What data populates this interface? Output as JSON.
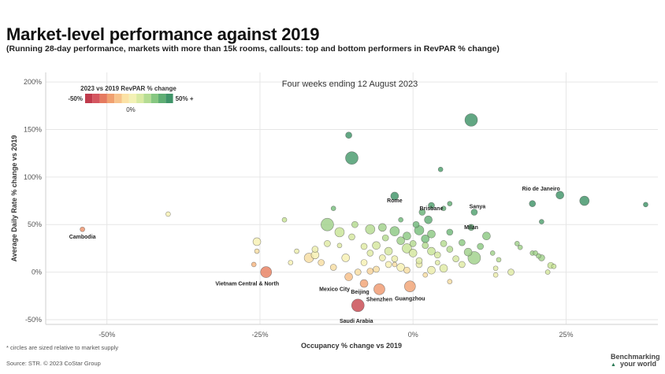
{
  "title": "Market-level performance against 2019",
  "subtitle": "(Running 28-day performance, markets with more than 15k rooms, callouts: top and bottom performers in RevPAR % change)",
  "footnote": "* circles are sized relative to market supply",
  "source": "Source: STR. © 2023 CoStar Group",
  "brand": {
    "line1": "Benchmarking",
    "line2": "your world"
  },
  "chart_data": {
    "type": "scatter",
    "annotation": "Four weeks ending 12 August 2023",
    "xlabel": "Occupancy % change vs 2019",
    "ylabel": "Average Daily Rate % change vs 2019",
    "xlim": [
      -60,
      40
    ],
    "ylim": [
      -55,
      210
    ],
    "x_ticks": [
      -50,
      -25,
      0,
      25
    ],
    "x_tick_labels": [
      "-50%",
      "-25%",
      "0%",
      "25%"
    ],
    "y_ticks": [
      -50,
      0,
      50,
      100,
      150,
      200
    ],
    "y_tick_labels": [
      "-50%",
      "0%",
      "50%",
      "100%",
      "150%",
      "200%"
    ],
    "grid": true,
    "legend": {
      "title": "2023 vs 2019 RevPAR % change",
      "min_label": "-50%",
      "mid_label": "0%",
      "max_label": "50% +",
      "colors": [
        "#c03b4c",
        "#d55660",
        "#e57a5f",
        "#f0a070",
        "#f7c38c",
        "#fbe2a6",
        "#f3f1b5",
        "#d9eaa3",
        "#b4dc93",
        "#86c781",
        "#5fae74",
        "#3f9468"
      ]
    },
    "points": [
      {
        "label": "Cambodia",
        "x": -54,
        "y": 45,
        "size": 3,
        "rp": -20
      },
      {
        "label": "Vietnam Central & North",
        "x": -24,
        "y": 0,
        "size": 7,
        "rp": -25
      },
      {
        "label": "Mexico City",
        "x": -10.5,
        "y": -5,
        "size": 5,
        "rp": -8
      },
      {
        "label": "Beijing",
        "x": -8,
        "y": -12,
        "size": 5,
        "rp": -15
      },
      {
        "label": "Shenzhen",
        "x": -5.5,
        "y": -18,
        "size": 7,
        "rp": -18
      },
      {
        "label": "Guangzhou",
        "x": -0.5,
        "y": -15,
        "size": 7,
        "rp": -15
      },
      {
        "label": "Saudi Arabia",
        "x": -9,
        "y": -35,
        "size": 8,
        "rp": -45
      },
      {
        "label": "Rome",
        "x": -3,
        "y": 80,
        "size": 5,
        "rp": 80
      },
      {
        "label": "Brisbane",
        "x": 3,
        "y": 70,
        "size": 4,
        "rp": 70
      },
      {
        "label": "Sanya",
        "x": 10,
        "y": 63,
        "size": 4,
        "rp": 70
      },
      {
        "label": "Milan",
        "x": 9.5,
        "y": 47,
        "size": 4,
        "rp": 60
      },
      {
        "label": "Rio de Janeiro",
        "x": 24,
        "y": 81,
        "size": 5,
        "rp": 90
      },
      {
        "label": "",
        "x": 9.5,
        "y": 160,
        "size": 8,
        "rp": 90
      },
      {
        "label": "",
        "x": -10.5,
        "y": 144,
        "size": 4,
        "rp": 80
      },
      {
        "label": "",
        "x": -10,
        "y": 120,
        "size": 8,
        "rp": 75
      },
      {
        "label": "",
        "x": 4.5,
        "y": 108,
        "size": 3,
        "rp": 70
      },
      {
        "label": "",
        "x": 28,
        "y": 75,
        "size": 6,
        "rp": 90
      },
      {
        "label": "",
        "x": 19.5,
        "y": 72,
        "size": 4,
        "rp": 80
      },
      {
        "label": "",
        "x": 38,
        "y": 71,
        "size": 3,
        "rp": 90
      },
      {
        "label": "",
        "x": 21,
        "y": 53,
        "size": 3,
        "rp": 70
      },
      {
        "label": "",
        "x": -40,
        "y": 61,
        "size": 3,
        "rp": 5
      },
      {
        "label": "",
        "x": -21,
        "y": 55,
        "size": 3,
        "rp": 25
      },
      {
        "label": "",
        "x": -13,
        "y": 67,
        "size": 3,
        "rp": 45
      },
      {
        "label": "",
        "x": -9.5,
        "y": 50,
        "size": 4,
        "rp": 30
      },
      {
        "label": "",
        "x": -14,
        "y": 50,
        "size": 8,
        "rp": 35
      },
      {
        "label": "",
        "x": -12,
        "y": 42,
        "size": 6,
        "rp": 25
      },
      {
        "label": "",
        "x": -10,
        "y": 37,
        "size": 4,
        "rp": 20
      },
      {
        "label": "",
        "x": -7,
        "y": 45,
        "size": 6,
        "rp": 30
      },
      {
        "label": "",
        "x": -5,
        "y": 47,
        "size": 5,
        "rp": 35
      },
      {
        "label": "",
        "x": -3,
        "y": 43,
        "size": 6,
        "rp": 40
      },
      {
        "label": "",
        "x": -1,
        "y": 38,
        "size": 5,
        "rp": 40
      },
      {
        "label": "",
        "x": 1,
        "y": 44,
        "size": 6,
        "rp": 45
      },
      {
        "label": "",
        "x": 2,
        "y": 35,
        "size": 5,
        "rp": 45
      },
      {
        "label": "",
        "x": 2.5,
        "y": 55,
        "size": 5,
        "rp": 60
      },
      {
        "label": "",
        "x": 1.5,
        "y": 63,
        "size": 4,
        "rp": 55
      },
      {
        "label": "",
        "x": 5,
        "y": 67,
        "size": 3,
        "rp": 60
      },
      {
        "label": "",
        "x": 6,
        "y": 72,
        "size": 3,
        "rp": 60
      },
      {
        "label": "",
        "x": 8,
        "y": 31,
        "size": 4,
        "rp": 40
      },
      {
        "label": "",
        "x": 9,
        "y": 21,
        "size": 5,
        "rp": 35
      },
      {
        "label": "",
        "x": 10,
        "y": 15,
        "size": 8,
        "rp": 35
      },
      {
        "label": "",
        "x": 12,
        "y": 38,
        "size": 5,
        "rp": 40
      },
      {
        "label": "",
        "x": 13,
        "y": 20,
        "size": 3,
        "rp": 35
      },
      {
        "label": "",
        "x": 14,
        "y": 13,
        "size": 3,
        "rp": 30
      },
      {
        "label": "",
        "x": 17,
        "y": 30,
        "size": 3,
        "rp": 35
      },
      {
        "label": "",
        "x": 17.5,
        "y": 26,
        "size": 3,
        "rp": 35
      },
      {
        "label": "",
        "x": 19.5,
        "y": 20,
        "size": 3,
        "rp": 35
      },
      {
        "label": "",
        "x": 20.5,
        "y": 17,
        "size": 3,
        "rp": 35
      },
      {
        "label": "",
        "x": 20,
        "y": 20,
        "size": 3,
        "rp": 35
      },
      {
        "label": "",
        "x": 21,
        "y": 15,
        "size": 4,
        "rp": 35
      },
      {
        "label": "",
        "x": 22.5,
        "y": 7,
        "size": 4,
        "rp": 25
      },
      {
        "label": "",
        "x": 23,
        "y": 6,
        "size": 3,
        "rp": 25
      },
      {
        "label": "",
        "x": 22,
        "y": 0,
        "size": 3,
        "rp": 20
      },
      {
        "label": "",
        "x": 16,
        "y": 0,
        "size": 4,
        "rp": 15
      },
      {
        "label": "",
        "x": 13.5,
        "y": -3,
        "size": 3,
        "rp": 10
      },
      {
        "label": "",
        "x": 13.5,
        "y": 4,
        "size": 3,
        "rp": 15
      },
      {
        "label": "",
        "x": 6,
        "y": -10,
        "size": 3,
        "rp": 0
      },
      {
        "label": "",
        "x": 5,
        "y": 4,
        "size": 5,
        "rp": 15
      },
      {
        "label": "",
        "x": 3,
        "y": 2,
        "size": 5,
        "rp": 10
      },
      {
        "label": "",
        "x": 1,
        "y": 8,
        "size": 4,
        "rp": 10
      },
      {
        "label": "",
        "x": -2,
        "y": 5,
        "size": 5,
        "rp": 5
      },
      {
        "label": "",
        "x": -4,
        "y": 8,
        "size": 4,
        "rp": 5
      },
      {
        "label": "",
        "x": -6,
        "y": 3,
        "size": 4,
        "rp": 0
      },
      {
        "label": "",
        "x": -8,
        "y": 10,
        "size": 4,
        "rp": 5
      },
      {
        "label": "",
        "x": -11,
        "y": 15,
        "size": 5,
        "rp": 5
      },
      {
        "label": "",
        "x": -13,
        "y": 5,
        "size": 4,
        "rp": 0
      },
      {
        "label": "",
        "x": -15,
        "y": 10,
        "size": 4,
        "rp": 0
      },
      {
        "label": "",
        "x": -16,
        "y": 18,
        "size": 5,
        "rp": 5
      },
      {
        "label": "",
        "x": -16,
        "y": 24,
        "size": 4,
        "rp": 10
      },
      {
        "label": "",
        "x": -19,
        "y": 22,
        "size": 3,
        "rp": 10
      },
      {
        "label": "",
        "x": -20,
        "y": 10,
        "size": 3,
        "rp": 5
      },
      {
        "label": "",
        "x": -17,
        "y": 15,
        "size": 6,
        "rp": 0
      },
      {
        "label": "",
        "x": -25.5,
        "y": 32,
        "size": 5,
        "rp": 5
      },
      {
        "label": "",
        "x": -25.5,
        "y": 22,
        "size": 3,
        "rp": 0
      },
      {
        "label": "",
        "x": -26,
        "y": 8,
        "size": 3,
        "rp": -10
      },
      {
        "label": "",
        "x": -7,
        "y": 1,
        "size": 4,
        "rp": -3
      },
      {
        "label": "",
        "x": -9,
        "y": 0,
        "size": 4,
        "rp": 0
      },
      {
        "label": "",
        "x": -1,
        "y": 25,
        "size": 6,
        "rp": 25
      },
      {
        "label": "",
        "x": -4,
        "y": 22,
        "size": 5,
        "rp": 20
      },
      {
        "label": "",
        "x": -6,
        "y": 28,
        "size": 5,
        "rp": 20
      },
      {
        "label": "",
        "x": 0,
        "y": 20,
        "size": 5,
        "rp": 20
      },
      {
        "label": "",
        "x": 3,
        "y": 22,
        "size": 5,
        "rp": 25
      },
      {
        "label": "",
        "x": 4,
        "y": 18,
        "size": 4,
        "rp": 20
      },
      {
        "label": "",
        "x": 6,
        "y": 24,
        "size": 4,
        "rp": 30
      },
      {
        "label": "",
        "x": 7,
        "y": 14,
        "size": 4,
        "rp": 20
      },
      {
        "label": "",
        "x": 5,
        "y": 30,
        "size": 4,
        "rp": 30
      },
      {
        "label": "",
        "x": 3,
        "y": 40,
        "size": 5,
        "rp": 40
      },
      {
        "label": "",
        "x": 0,
        "y": 30,
        "size": 4,
        "rp": 30
      },
      {
        "label": "",
        "x": -2,
        "y": 33,
        "size": 5,
        "rp": 35
      },
      {
        "label": "",
        "x": -3,
        "y": 14,
        "size": 4,
        "rp": 10
      },
      {
        "label": "",
        "x": -5,
        "y": 15,
        "size": 4,
        "rp": 10
      },
      {
        "label": "",
        "x": -7,
        "y": 20,
        "size": 4,
        "rp": 15
      },
      {
        "label": "",
        "x": -8,
        "y": 27,
        "size": 4,
        "rp": 15
      },
      {
        "label": "",
        "x": -12,
        "y": 28,
        "size": 3,
        "rp": 15
      },
      {
        "label": "",
        "x": -14,
        "y": 30,
        "size": 4,
        "rp": 15
      },
      {
        "label": "",
        "x": 1,
        "y": 12,
        "size": 4,
        "rp": 15
      },
      {
        "label": "",
        "x": 2,
        "y": 28,
        "size": 4,
        "rp": 30
      },
      {
        "label": "",
        "x": 4,
        "y": 10,
        "size": 3,
        "rp": 15
      },
      {
        "label": "",
        "x": 8,
        "y": 8,
        "size": 4,
        "rp": 15
      },
      {
        "label": "",
        "x": -1,
        "y": 2,
        "size": 4,
        "rp": 0
      },
      {
        "label": "",
        "x": 2,
        "y": -3,
        "size": 3,
        "rp": 0
      },
      {
        "label": "",
        "x": -4.5,
        "y": 36,
        "size": 4,
        "rp": 30
      },
      {
        "label": "",
        "x": 0.5,
        "y": 50,
        "size": 4,
        "rp": 50
      },
      {
        "label": "",
        "x": -2,
        "y": 55,
        "size": 3,
        "rp": 50
      },
      {
        "label": "",
        "x": 6,
        "y": 42,
        "size": 4,
        "rp": 50
      },
      {
        "label": "",
        "x": 11,
        "y": 27,
        "size": 4,
        "rp": 40
      },
      {
        "label": "",
        "x": -3,
        "y": 8,
        "size": 3,
        "rp": 0
      }
    ]
  }
}
